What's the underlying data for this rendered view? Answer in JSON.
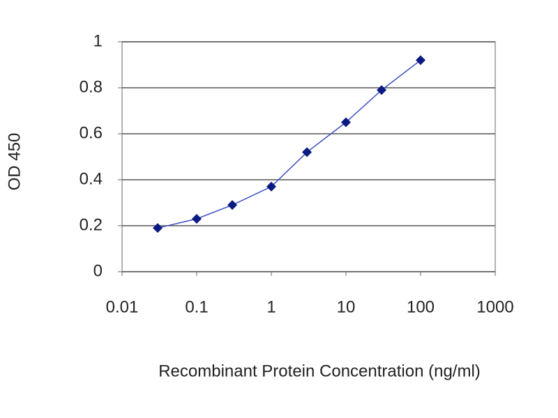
{
  "chart_data": {
    "type": "line",
    "x_label": "Recombinant Protein Concentration (ng/ml)",
    "y_label": "OD 450",
    "x": [
      0.03,
      0.1,
      0.3,
      1,
      3,
      10,
      30,
      100
    ],
    "values": [
      0.19,
      0.23,
      0.29,
      0.37,
      0.52,
      0.65,
      0.79,
      0.92
    ],
    "color": "#3b4fc4",
    "marker_color": "#0a1a80",
    "x_scale": "log",
    "xlim": [
      0.01,
      1000
    ],
    "xticks": [
      0.01,
      0.1,
      1,
      10,
      100,
      1000
    ],
    "ylim": [
      0,
      1
    ],
    "yticks": [
      0,
      0.2,
      0.4,
      0.6,
      0.8,
      1
    ],
    "grid": true
  }
}
